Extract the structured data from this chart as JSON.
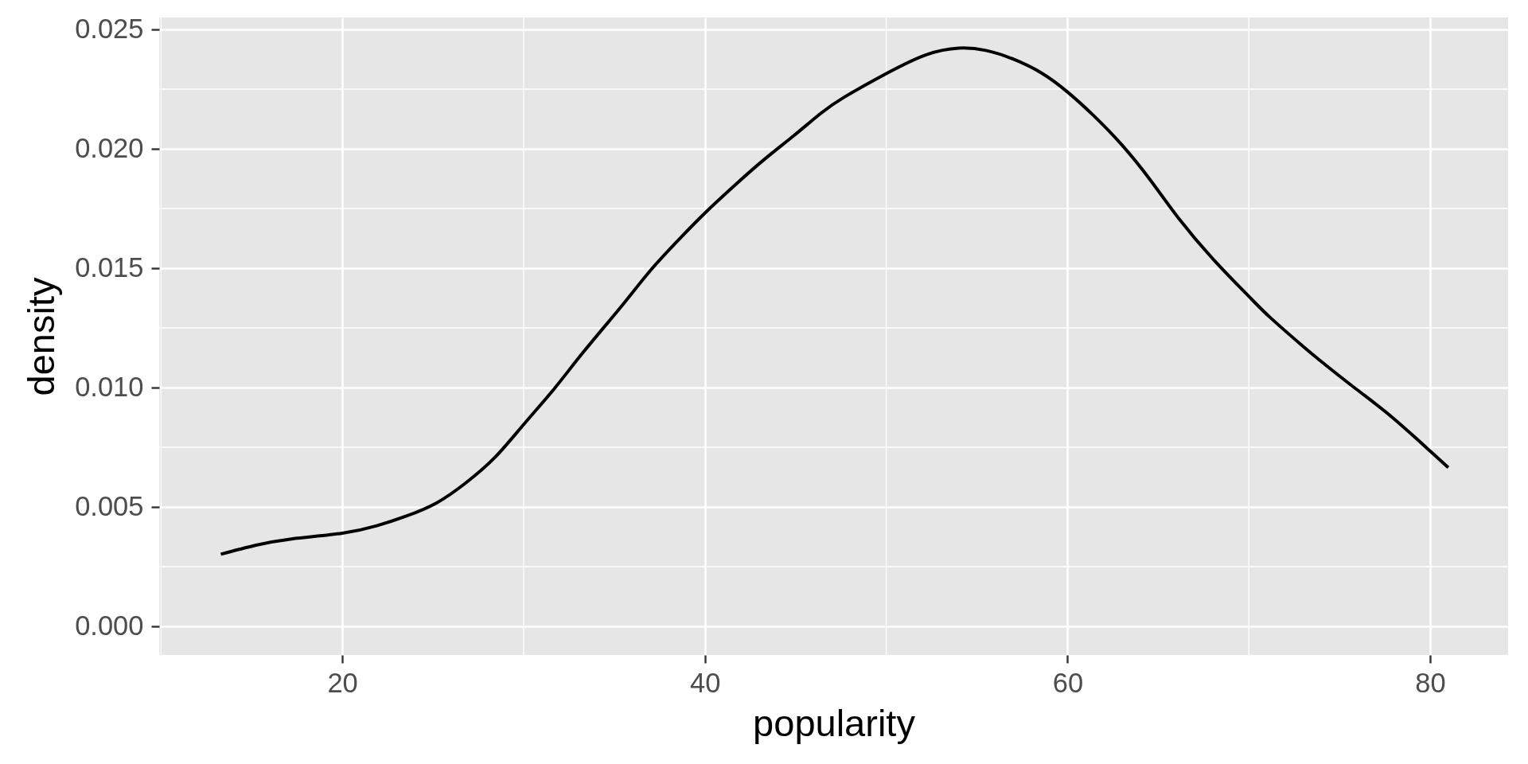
{
  "chart_data": {
    "type": "line",
    "xlabel": "popularity",
    "ylabel": "density",
    "x": [
      13.3,
      15.2,
      17.2,
      20.0,
      21.9,
      23.5,
      25.2,
      26.8,
      28.4,
      30.0,
      31.7,
      33.3,
      35.4,
      37.0,
      38.6,
      40.0,
      41.7,
      43.3,
      44.9,
      46.4,
      47.7,
      50.0,
      52.2,
      54.0,
      55.5,
      57.0,
      58.6,
      60.0,
      61.4,
      63.0,
      64.6,
      66.1,
      68.1,
      70.0,
      71.2,
      72.8,
      73.9,
      75.9,
      77.9,
      80.0,
      81.0
    ],
    "values": [
      0.00302,
      0.00339,
      0.00366,
      0.0039,
      0.00421,
      0.00461,
      0.00517,
      0.006,
      0.00706,
      0.00845,
      0.00996,
      0.01149,
      0.01341,
      0.01491,
      0.01623,
      0.01731,
      0.01851,
      0.01957,
      0.02055,
      0.02149,
      0.02217,
      0.02315,
      0.02394,
      0.02422,
      0.02412,
      0.02376,
      0.02316,
      0.02238,
      0.02142,
      0.02016,
      0.01866,
      0.01712,
      0.01532,
      0.01382,
      0.01292,
      0.01185,
      0.01115,
      0.00995,
      0.00876,
      0.00734,
      0.00665
    ],
    "color": "#000000",
    "xlim": [
      9.9,
      84.3
    ],
    "ylim": [
      -0.0012,
      0.0255
    ],
    "xticks": [
      20,
      40,
      60,
      80
    ],
    "yticks": [
      {
        "value": 0,
        "label": "0.000"
      },
      {
        "value": 0.005,
        "label": "0.005"
      },
      {
        "value": 0.01,
        "label": "0.010"
      },
      {
        "value": 0.015,
        "label": "0.015"
      },
      {
        "value": 0.02,
        "label": "0.020"
      },
      {
        "value": 0.025,
        "label": "0.025"
      }
    ],
    "grid": true
  }
}
